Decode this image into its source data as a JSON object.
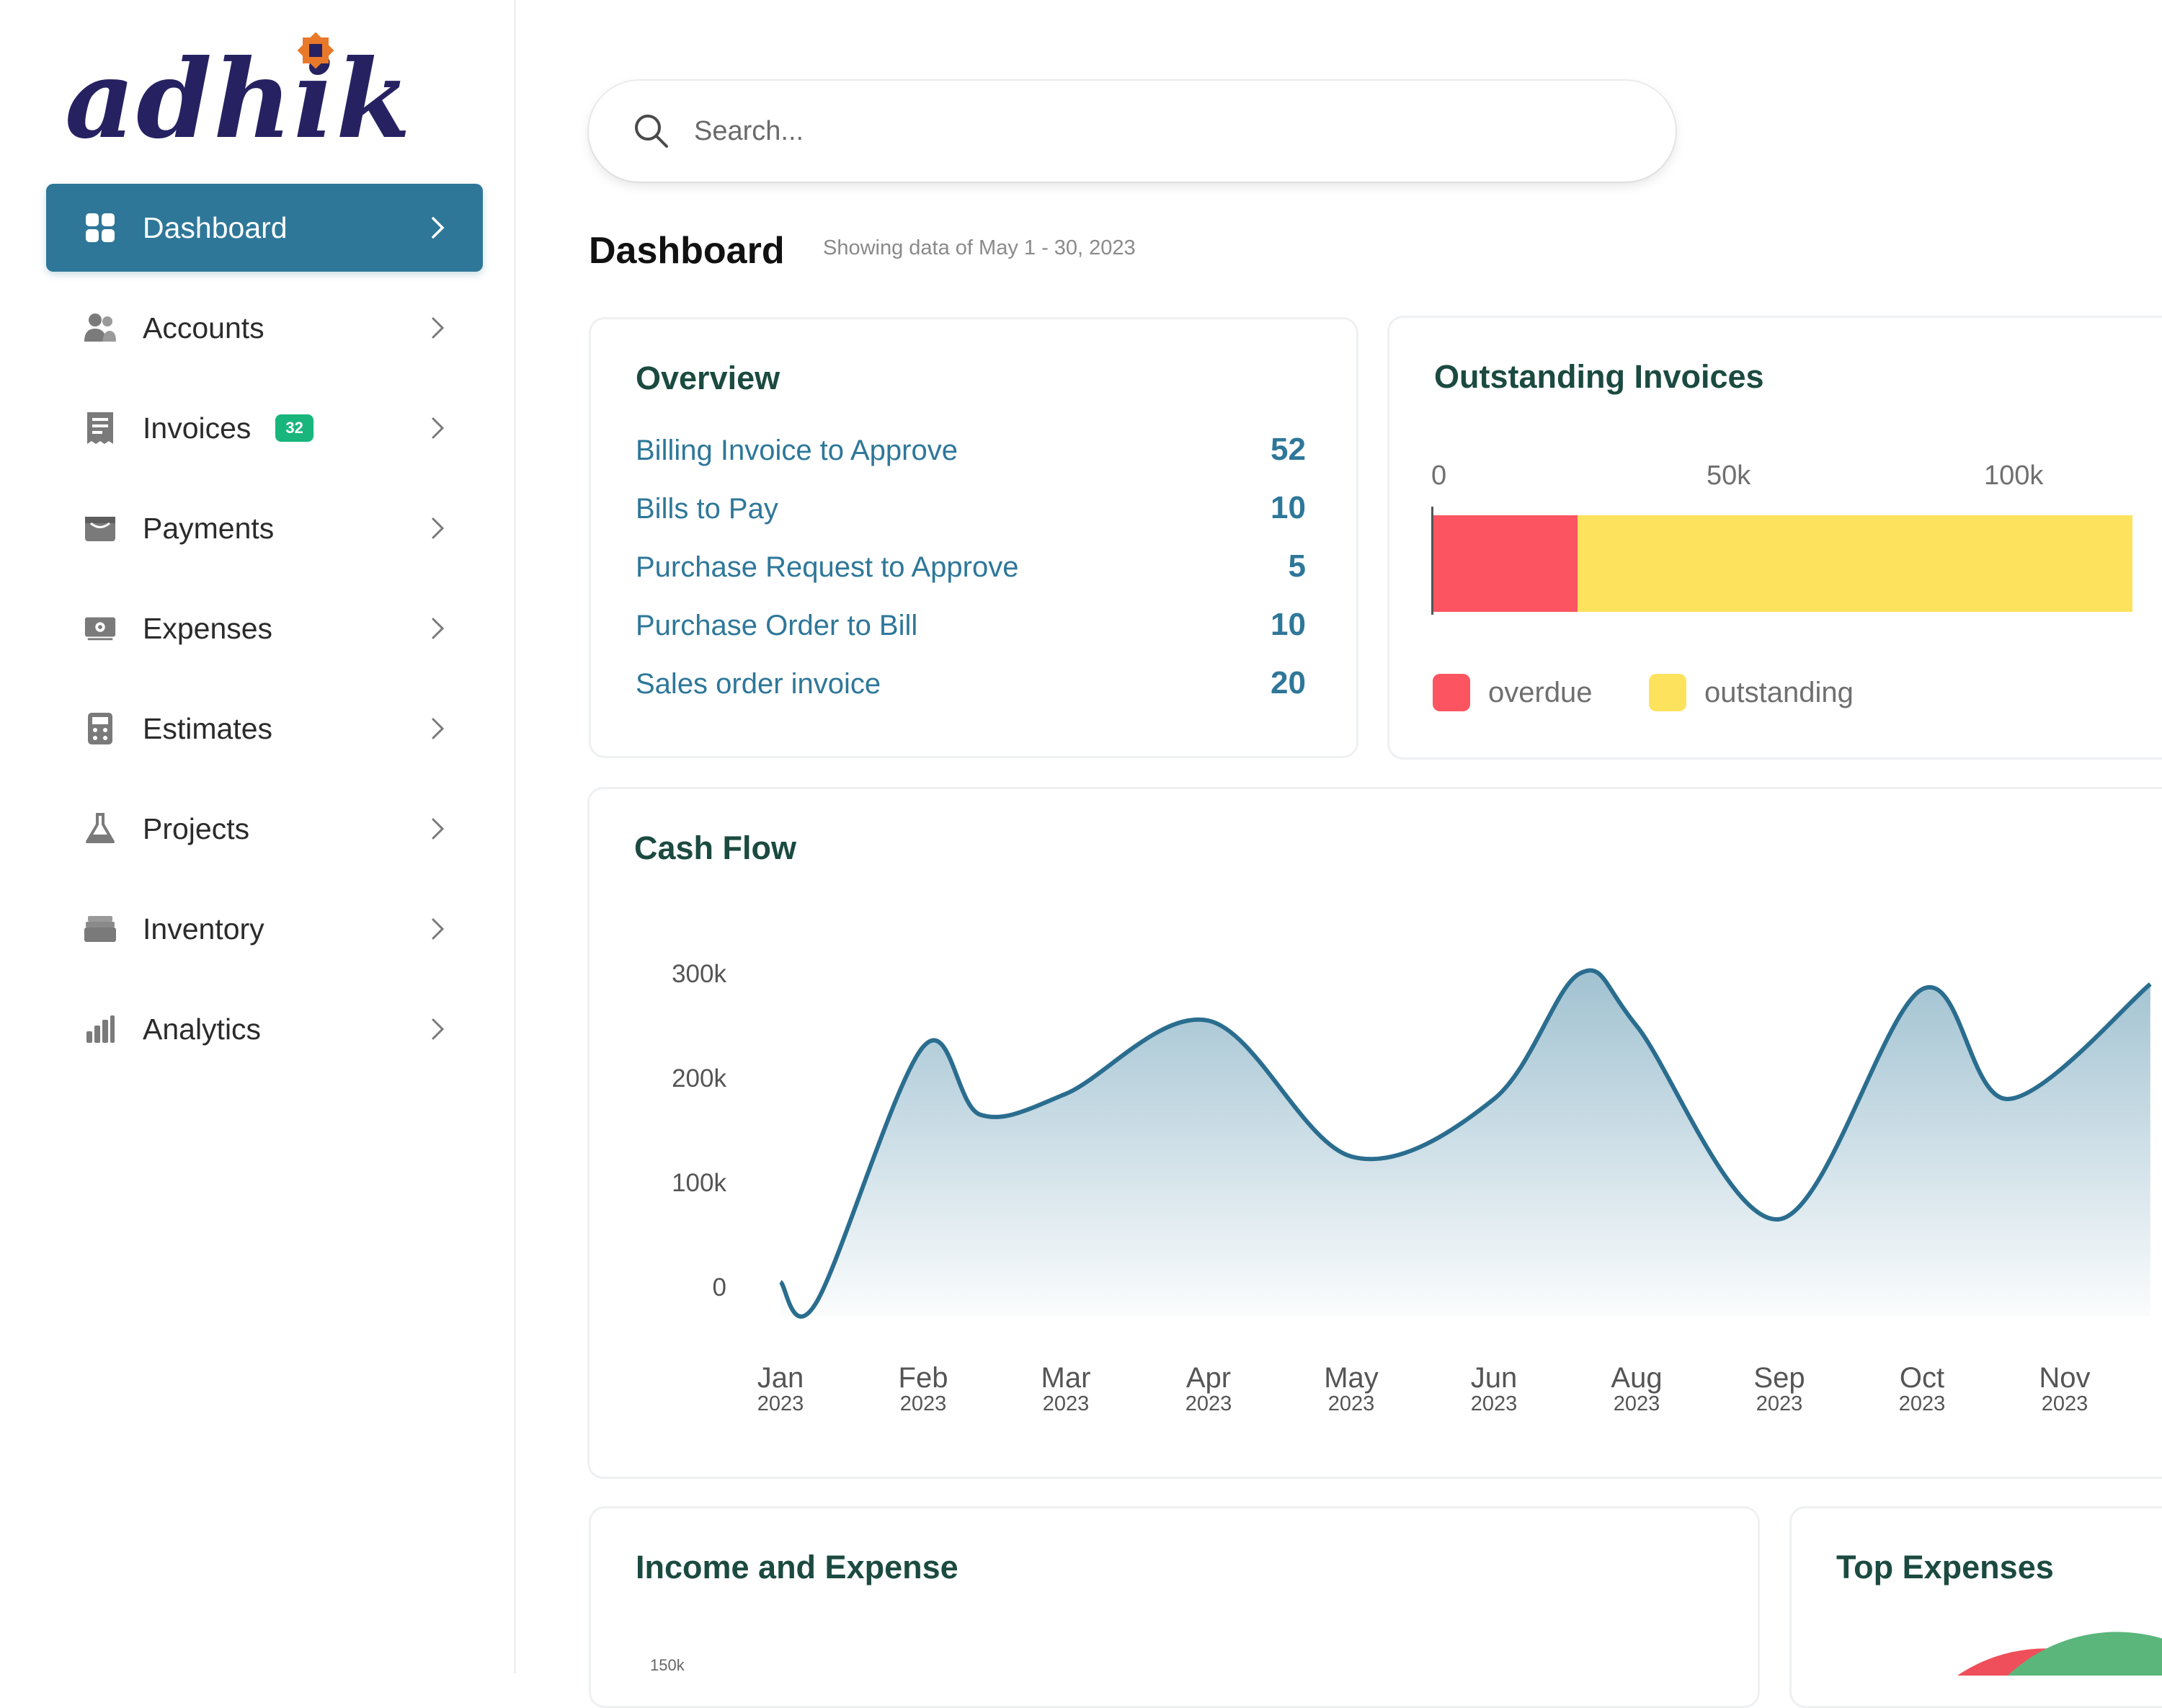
{
  "brand": {
    "name": "adhik"
  },
  "sidebar": {
    "items": [
      {
        "label": "Dashboard"
      },
      {
        "label": "Accounts"
      },
      {
        "label": "Invoices",
        "badge": "32"
      },
      {
        "label": "Payments"
      },
      {
        "label": "Expenses"
      },
      {
        "label": "Estimates"
      },
      {
        "label": "Projects"
      },
      {
        "label": "Inventory"
      },
      {
        "label": "Analytics"
      }
    ],
    "active": "Dashboard"
  },
  "search": {
    "placeholder": "Search..."
  },
  "header": {
    "title": "Dashboard",
    "subtitle": "Showing data of May 1 - 30, 2023"
  },
  "overview": {
    "title": "Overview",
    "rows": [
      {
        "label": "Billing Invoice to Approve",
        "value": "52"
      },
      {
        "label": "Bills to Pay",
        "value": "10"
      },
      {
        "label": "Purchase Request to Approve",
        "value": "5"
      },
      {
        "label": "Purchase Order to Bill",
        "value": "10"
      },
      {
        "label": "Sales order invoice",
        "value": "20"
      }
    ]
  },
  "outstanding": {
    "title": "Outstanding Invoices",
    "ticks": [
      "0",
      "50k",
      "100k"
    ],
    "legend": [
      {
        "label": "overdue",
        "color": "#fc5460"
      },
      {
        "label": "outstanding",
        "color": "#fde25e"
      }
    ]
  },
  "cash_flow": {
    "title": "Cash Flow"
  },
  "income_expense": {
    "title": "Income and Expense",
    "ytick": "150k"
  },
  "top_expenses": {
    "title": "Top Expenses"
  },
  "colors": {
    "primary": "#2e7799",
    "heading": "#1b4a40",
    "badge": "#18b67c"
  },
  "chart_data": [
    {
      "type": "bar",
      "title": "Outstanding Invoices",
      "orientation": "horizontal",
      "stacked": true,
      "xticks": [
        "0",
        "50k",
        "100k"
      ],
      "series": [
        {
          "name": "overdue",
          "values": [
            26000
          ]
        },
        {
          "name": "outstanding",
          "values": [
            100000
          ]
        }
      ],
      "legend_position": "bottom"
    },
    {
      "type": "area",
      "title": "Cash Flow",
      "x": [
        "Jan 2023",
        "Feb 2023",
        "Mar 2023",
        "Apr 2023",
        "May 2023",
        "Jun 2023",
        "Aug 2023",
        "Sep 2023",
        "Oct 2023",
        "Nov 2023"
      ],
      "month_labels": [
        "Jan",
        "Feb",
        "Mar",
        "Apr",
        "May",
        "Jun",
        "Aug",
        "Sep",
        "Oct",
        "Nov"
      ],
      "year_label": "2023",
      "yticks": [
        "300k",
        "200k",
        "100k",
        "0"
      ],
      "ylim": [
        0,
        300000
      ],
      "points": [
        [
          0.0,
          5000
        ],
        [
          0.25,
          -15000
        ],
        [
          1.0,
          230000
        ],
        [
          1.4,
          165000
        ],
        [
          2.0,
          185000
        ],
        [
          3.0,
          255000
        ],
        [
          4.0,
          125000
        ],
        [
          5.0,
          180000
        ],
        [
          5.6,
          300000
        ],
        [
          6.0,
          250000
        ],
        [
          7.0,
          65000
        ],
        [
          8.0,
          285000
        ],
        [
          8.6,
          180000
        ],
        [
          9.6,
          290000
        ]
      ]
    }
  ]
}
